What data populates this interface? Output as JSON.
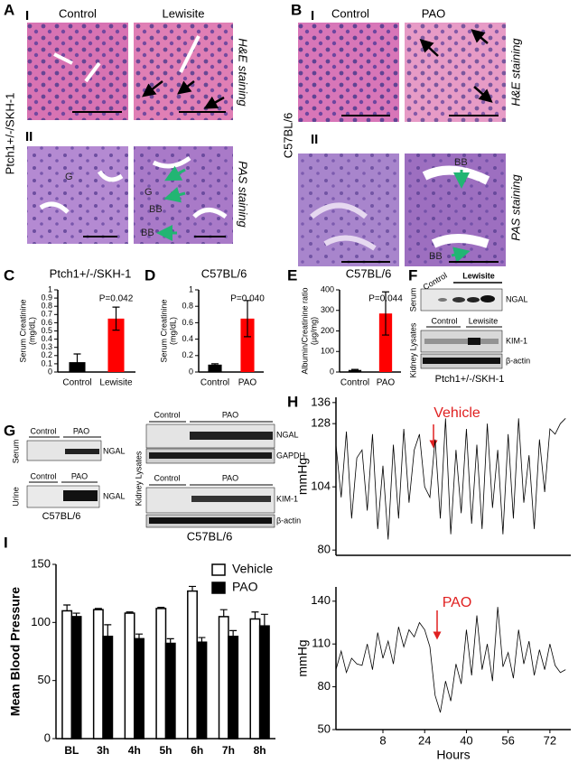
{
  "labels": {
    "A": {
      "letter": "A",
      "row1": "I",
      "control": "Control",
      "treatment": "Lewisite",
      "row2": "II",
      "strain": "Ptch1+/-/SKH-1",
      "stain1": "H&E staining",
      "stain2": "PAS staining",
      "marks": [
        "G",
        "G",
        "BB",
        "BB"
      ]
    },
    "B": {
      "letter": "B",
      "row1": "I",
      "control": "Control",
      "treatment": "PAO",
      "row2": "II",
      "strain": "C57BL/6",
      "stain1": "H&E staining",
      "stain2": "PAS staining",
      "marks": [
        "BB",
        "BB"
      ]
    },
    "F": {
      "letter": "F",
      "control1": "Control",
      "treatment1": "Lewisite",
      "serum": "Serum",
      "ngal": "NGAL",
      "control2": "Control",
      "treatment2": "Lewisite",
      "lysates": "Kidney Lysates",
      "kim": "KIM-1",
      "actin": "β-actin",
      "strain": "Ptch1+/-/SKH-1"
    },
    "G": {
      "letter": "G",
      "control1": "Control",
      "treatment1": "PAO",
      "serum": "Serum",
      "ngal1": "NGAL",
      "control2": "Control",
      "treatment2": "PAO",
      "urine": "Urine",
      "ngal2": "NGAL",
      "strain1": "C57BL/6",
      "control3": "Control",
      "treatment3": "PAO",
      "ngal3": "NGAL",
      "gapdh": "GAPDH",
      "lysates": "Kidney Lysates",
      "control4": "Control",
      "treatment4": "PAO",
      "kim": "KIM-1",
      "actin": "β-actin",
      "strain2": "C57BL/6"
    }
  },
  "chart_data": [
    {
      "type": "bar",
      "panel": "C",
      "title": "Ptch1+/-/SKH-1",
      "y_label": [
        "Serum Creatinine",
        "(mg/dL)"
      ],
      "categories": [
        "Control",
        "Lewisite"
      ],
      "values": [
        0.12,
        0.65
      ],
      "errors": [
        0.1,
        0.14
      ],
      "colors": [
        "#000000",
        "#ff0000"
      ],
      "ylim": [
        0,
        1
      ],
      "yticks": [
        0,
        0.1,
        0.2,
        0.3,
        0.4,
        0.5,
        0.6,
        0.7,
        0.8,
        0.9,
        1
      ],
      "annotation": "P=0.042"
    },
    {
      "type": "bar",
      "panel": "D",
      "title": "C57BL/6",
      "y_label": [
        "Serum Creatinine",
        "(mg/dL)"
      ],
      "categories": [
        "Control",
        "PAO"
      ],
      "values": [
        0.09,
        0.65
      ],
      "errors": [
        0.01,
        0.22
      ],
      "colors": [
        "#000000",
        "#ff0000"
      ],
      "ylim": [
        0,
        1
      ],
      "yticks": [
        0,
        0.2,
        0.4,
        0.6,
        0.8,
        1
      ],
      "annotation": "P=0.040"
    },
    {
      "type": "bar",
      "panel": "E",
      "title": "C57BL/6",
      "y_label": [
        "Albumin/Creatinine ratio",
        "(µg/mg)"
      ],
      "categories": [
        "Control",
        "PAO"
      ],
      "values": [
        10,
        285
      ],
      "errors": [
        3,
        105
      ],
      "colors": [
        "#000000",
        "#ff0000"
      ],
      "ylim": [
        0,
        400
      ],
      "yticks": [
        0,
        100,
        200,
        300,
        400
      ],
      "annotation": "P=0.044"
    },
    {
      "type": "line",
      "panel": "H",
      "y_label": "mmHg",
      "annotation": "Vehicle",
      "color": "#000000",
      "x": [
        -10,
        -8,
        -6,
        -4,
        -2,
        0,
        2,
        4,
        6,
        8,
        10,
        12,
        14,
        16,
        18,
        20,
        22,
        24,
        26,
        28,
        30,
        32,
        34,
        36,
        38,
        40,
        42,
        44,
        46,
        48,
        50,
        52,
        54,
        56,
        58,
        60,
        62,
        64,
        66,
        68,
        70,
        72,
        74,
        76,
        78
      ],
      "values": [
        120,
        100,
        125,
        92,
        115,
        118,
        95,
        124,
        88,
        112,
        84,
        120,
        92,
        126,
        98,
        118,
        124,
        104,
        100,
        122,
        92,
        130,
        86,
        118,
        94,
        126,
        90,
        120,
        88,
        128,
        96,
        118,
        86,
        124,
        92,
        130,
        98,
        116,
        88,
        122,
        102,
        126,
        124,
        128,
        130
      ],
      "xlim": [
        -10,
        80
      ],
      "ylim": [
        78,
        138
      ],
      "yticks": [
        80,
        104,
        128,
        136
      ]
    },
    {
      "type": "line",
      "y_label": "mmHg",
      "x_label": "Hours",
      "annotation": "PAO",
      "color": "#000000",
      "x": [
        -10,
        -8,
        -6,
        -4,
        -2,
        0,
        2,
        4,
        6,
        8,
        10,
        12,
        14,
        16,
        18,
        20,
        22,
        24,
        26,
        28,
        30,
        32,
        34,
        36,
        38,
        40,
        42,
        44,
        46,
        48,
        50,
        52,
        54,
        56,
        58,
        60,
        62,
        64,
        66,
        68,
        70,
        72,
        74,
        76,
        78
      ],
      "values": [
        92,
        105,
        90,
        100,
        96,
        95,
        110,
        92,
        118,
        100,
        112,
        96,
        122,
        108,
        120,
        115,
        125,
        120,
        108,
        74,
        62,
        84,
        70,
        96,
        82,
        120,
        88,
        130,
        92,
        110,
        84,
        136,
        94,
        104,
        86,
        120,
        96,
        112,
        88,
        106,
        92,
        110,
        95,
        90,
        92
      ],
      "xlim": [
        -10,
        80
      ],
      "ylim": [
        50,
        150
      ],
      "yticks": [
        50,
        80,
        110,
        140
      ],
      "xticks": [
        8,
        24,
        40,
        56,
        72
      ]
    },
    {
      "type": "bar",
      "panel": "I",
      "y_label": "Mean Blood Pressure",
      "categories": [
        "BL",
        "3h",
        "4h",
        "5h",
        "6h",
        "7h",
        "8h"
      ],
      "series": [
        {
          "name": "Vehicle",
          "color": "#ffffff",
          "values": [
            110,
            111,
            108,
            112,
            127,
            105,
            103
          ],
          "errors": [
            5,
            1,
            1,
            1,
            4,
            6,
            6
          ]
        },
        {
          "name": "PAO",
          "color": "#000000",
          "values": [
            105,
            88,
            86,
            82,
            83,
            88,
            97
          ],
          "errors": [
            3,
            10,
            4,
            4,
            4,
            5,
            10
          ]
        }
      ],
      "ylim": [
        0,
        150
      ],
      "yticks": [
        0,
        50,
        100,
        150
      ],
      "legend": "upper right"
    }
  ]
}
